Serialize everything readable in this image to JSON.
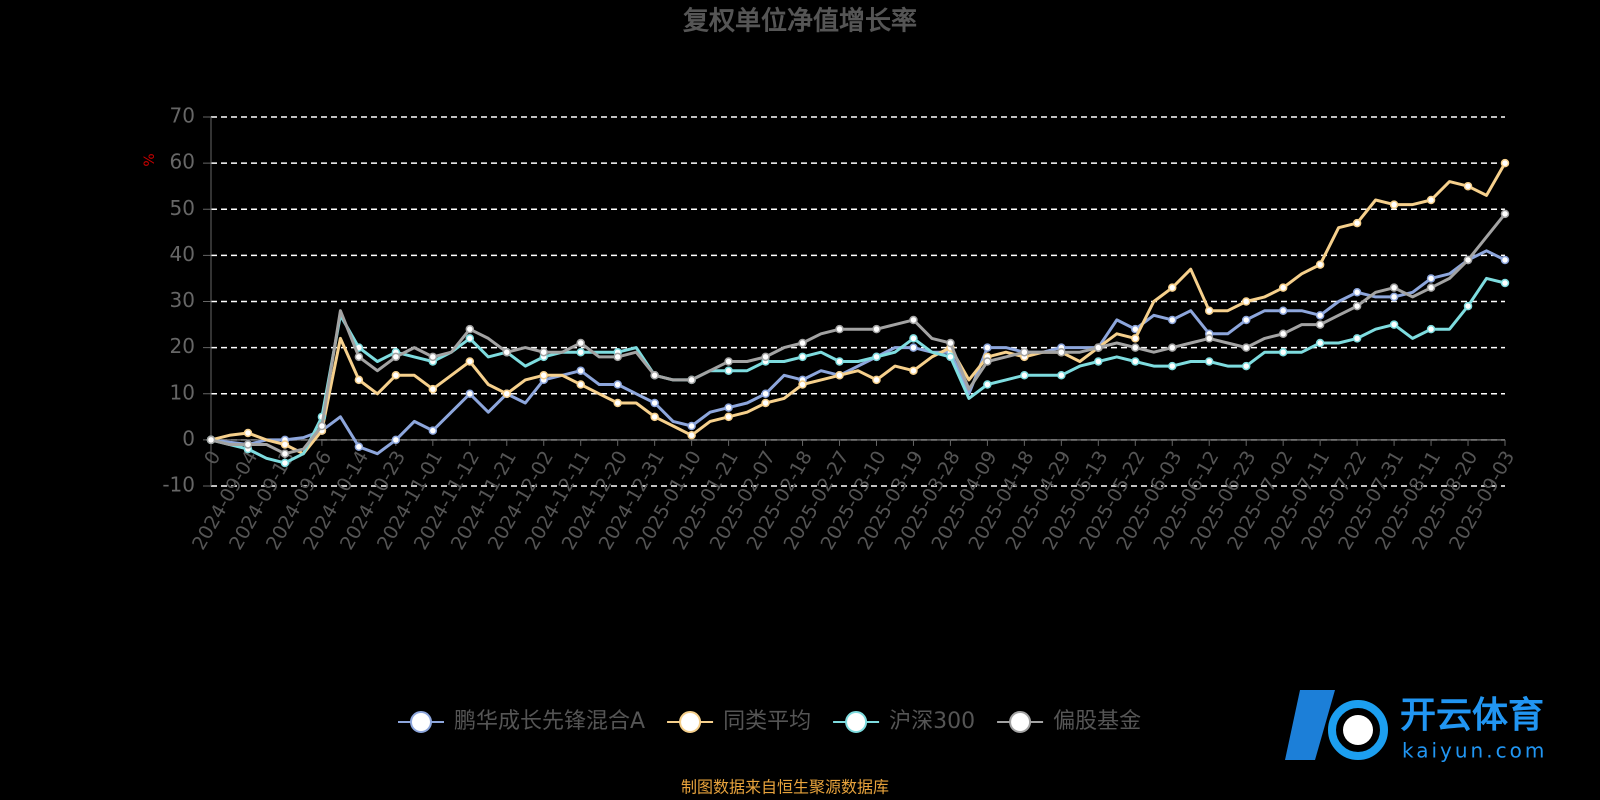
{
  "chart_data": {
    "type": "line",
    "title": "复权单位净值增长率",
    "y_label": "%",
    "categories": [
      "0",
      null,
      "2024-09-04",
      null,
      "2024-09-13",
      null,
      "2024-09-26",
      null,
      "2024-10-14",
      null,
      "2024-10-23",
      null,
      "2024-11-01",
      null,
      "2024-11-12",
      null,
      "2024-11-21",
      null,
      "2024-12-02",
      null,
      "2024-12-11",
      null,
      "2024-12-20",
      null,
      "2024-12-31",
      null,
      "2025-01-10",
      null,
      "2025-01-21",
      null,
      "2025-02-07",
      null,
      "2025-02-18",
      null,
      "2025-02-27",
      null,
      "2025-03-10",
      null,
      "2025-03-19",
      null,
      "2025-03-28",
      null,
      "2025-04-09",
      null,
      "2025-04-18",
      null,
      "2025-04-29",
      null,
      "2025-05-13",
      null,
      "2025-05-22",
      null,
      "2025-06-03",
      null,
      "2025-06-12",
      null,
      "2025-06-23",
      null,
      "2025-07-02",
      null,
      "2025-07-11",
      null,
      "2025-07-22",
      null,
      "2025-07-31",
      null,
      "2025-08-11",
      null,
      "2025-08-20",
      null,
      "2025-09-03"
    ],
    "series": [
      {
        "name": "鹏华成长先锋混合A",
        "color": "#8da6dc",
        "values": [
          0,
          -0.5,
          -1,
          0,
          0,
          0.5,
          2,
          5,
          -1.5,
          -3,
          0,
          4,
          2,
          6,
          10,
          6,
          10,
          8,
          13,
          14,
          15,
          12,
          12,
          10,
          8,
          4,
          3,
          6,
          7,
          8,
          10,
          14,
          13,
          15,
          14,
          16,
          18,
          20,
          20,
          19,
          19,
          10,
          20,
          20,
          19,
          19,
          20,
          20,
          20,
          26,
          24,
          27,
          26,
          28,
          23,
          23,
          26,
          28,
          28,
          28,
          27,
          30,
          32,
          31,
          31,
          32,
          35,
          36,
          39,
          41,
          39
        ]
      },
      {
        "name": "同类平均",
        "color": "#f6d08c",
        "values": [
          0,
          1,
          1.5,
          0,
          -1,
          -3,
          2,
          22,
          13,
          10,
          14,
          14,
          11,
          14,
          17,
          12,
          10,
          13,
          14,
          14,
          12,
          10,
          8,
          8,
          5,
          3,
          1,
          4,
          5,
          6,
          8,
          9,
          12,
          13,
          14,
          15,
          13,
          16,
          15,
          18,
          20,
          13,
          18,
          19,
          18,
          19,
          19,
          17,
          20,
          23,
          22,
          30,
          33,
          37,
          28,
          28,
          30,
          31,
          33,
          36,
          38,
          46,
          47,
          52,
          51,
          51,
          52,
          56,
          55,
          53,
          60
        ]
      },
      {
        "name": "沪深300",
        "color": "#7edcdf",
        "values": [
          0,
          -1,
          -2,
          -4,
          -5,
          -3,
          5,
          27,
          20,
          17,
          19,
          18,
          17,
          19,
          22,
          18,
          19,
          16,
          18,
          19,
          19,
          19,
          19,
          20,
          14,
          13,
          13,
          15,
          15,
          15,
          17,
          17,
          18,
          19,
          17,
          17,
          18,
          19,
          22,
          19,
          18,
          9,
          12,
          13,
          14,
          14,
          14,
          16,
          17,
          18,
          17,
          16,
          16,
          17,
          17,
          16,
          16,
          19,
          19,
          19,
          21,
          21,
          22,
          24,
          25,
          22,
          24,
          24,
          29,
          35,
          34
        ]
      },
      {
        "name": "偏股基金",
        "color": "#a3a3a3",
        "values": [
          0,
          -1,
          -1,
          -1,
          -3,
          -2,
          3,
          28,
          18,
          15,
          18,
          20,
          18,
          19,
          24,
          22,
          19,
          20,
          19,
          19,
          21,
          18,
          18,
          19,
          14,
          13,
          13,
          15,
          17,
          17,
          18,
          20,
          21,
          23,
          24,
          24,
          24,
          25,
          26,
          22,
          21,
          11,
          17,
          18,
          19,
          19,
          19,
          19,
          20,
          21,
          20,
          19,
          20,
          21,
          22,
          21,
          20,
          22,
          23,
          25,
          25,
          27,
          29,
          32,
          33,
          31,
          33,
          35,
          39,
          44,
          49
        ]
      }
    ],
    "ylim": [
      -10,
      70
    ],
    "yticks": [
      -10,
      0,
      10,
      20,
      30,
      40,
      50,
      60,
      70
    ],
    "grid": true,
    "source": "制图数据来自恒生聚源数据库",
    "watermark": {
      "brand": "开云体育",
      "url": "kaiyun.com"
    }
  }
}
